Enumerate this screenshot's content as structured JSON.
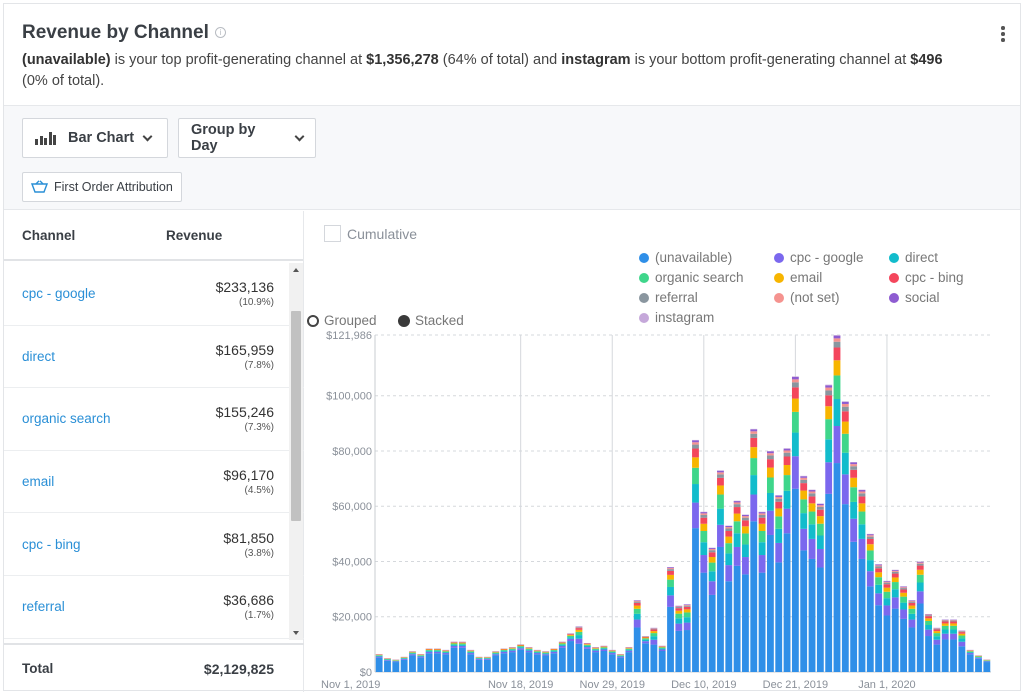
{
  "header": {
    "title": "Revenue by Channel",
    "info_icon": "info-icon",
    "summary": {
      "top_channel": "(unavailable)",
      "t1": " is your top profit-generating channel at ",
      "top_amount": "$1,356,278",
      "t2": " (64% of total) and ",
      "bottom_channel": "instagram",
      "t3": " is your bottom profit-generating channel at ",
      "bottom_amount": "$496",
      "t4": " (0% of total)."
    }
  },
  "toolbar": {
    "chart_type": "Bar Chart",
    "group_by": "Group by Day",
    "attribution": "First Order Attribution"
  },
  "table": {
    "col_channel": "Channel",
    "col_revenue": "Revenue",
    "rows": [
      {
        "name": "cpc - google",
        "amount": "$233,136",
        "pct": "(10.9%)"
      },
      {
        "name": "direct",
        "amount": "$165,959",
        "pct": "(7.8%)"
      },
      {
        "name": "organic search",
        "amount": "$155,246",
        "pct": "(7.3%)"
      },
      {
        "name": "email",
        "amount": "$96,170",
        "pct": "(4.5%)"
      },
      {
        "name": "cpc - bing",
        "amount": "$81,850",
        "pct": "(3.8%)"
      },
      {
        "name": "referral",
        "amount": "$36,686",
        "pct": "(1.7%)"
      }
    ],
    "total_label": "Total",
    "total_value": "$2,129,825"
  },
  "controls": {
    "cumulative": "Cumulative",
    "grouped": "Grouped",
    "stacked": "Stacked"
  },
  "chart_data": {
    "type": "bar",
    "stacked": true,
    "ylim": [
      0,
      121986
    ],
    "y_ticks": [
      "$0",
      "$20,000",
      "$40,000",
      "$60,000",
      "$80,000",
      "$100,000",
      "$121,986"
    ],
    "y_tick_values": [
      0,
      20000,
      40000,
      60000,
      80000,
      100000,
      121986
    ],
    "x_tick_labels": [
      "Nov 1, 2019",
      "Nov 18, 2019",
      "Nov 29, 2019",
      "Dec 10, 2019",
      "Dec 21, 2019",
      "Jan 1, 2020"
    ],
    "x_tick_index": [
      0,
      17,
      28,
      39,
      50,
      61
    ],
    "legend_position": "top-right",
    "series": [
      {
        "name": "(unavailable)",
        "color": "#2f8fe8"
      },
      {
        "name": "cpc - google",
        "color": "#7b68ee"
      },
      {
        "name": "direct",
        "color": "#12bccc"
      },
      {
        "name": "organic search",
        "color": "#3fd68b"
      },
      {
        "name": "email",
        "color": "#f7b500"
      },
      {
        "name": "cpc - bing",
        "color": "#f4465c"
      },
      {
        "name": "referral",
        "color": "#8a969f"
      },
      {
        "name": "(not set)",
        "color": "#f5938f"
      },
      {
        "name": "social",
        "color": "#8e5cd1"
      },
      {
        "name": "instagram",
        "color": "#c5a8da"
      }
    ],
    "daily_totals": [
      6500,
      5000,
      4500,
      5500,
      7500,
      6500,
      8500,
      8500,
      8000,
      11000,
      11000,
      8000,
      5500,
      5500,
      7500,
      8500,
      9000,
      10000,
      9000,
      8000,
      7500,
      8500,
      11000,
      14000,
      16500,
      10500,
      9000,
      9500,
      8000,
      6500,
      9000,
      26000,
      13000,
      16000,
      9500,
      38000,
      24000,
      24500,
      84000,
      58000,
      45000,
      73000,
      53000,
      62000,
      57000,
      88000,
      58000,
      80000,
      64000,
      81000,
      107000,
      71000,
      66000,
      61000,
      104000,
      121986,
      98000,
      76000,
      66000,
      50000,
      39000,
      33000,
      37000,
      31000,
      26000,
      40000,
      21000,
      16000,
      19000,
      19000,
      15000,
      8000,
      6000,
      4500
    ]
  }
}
